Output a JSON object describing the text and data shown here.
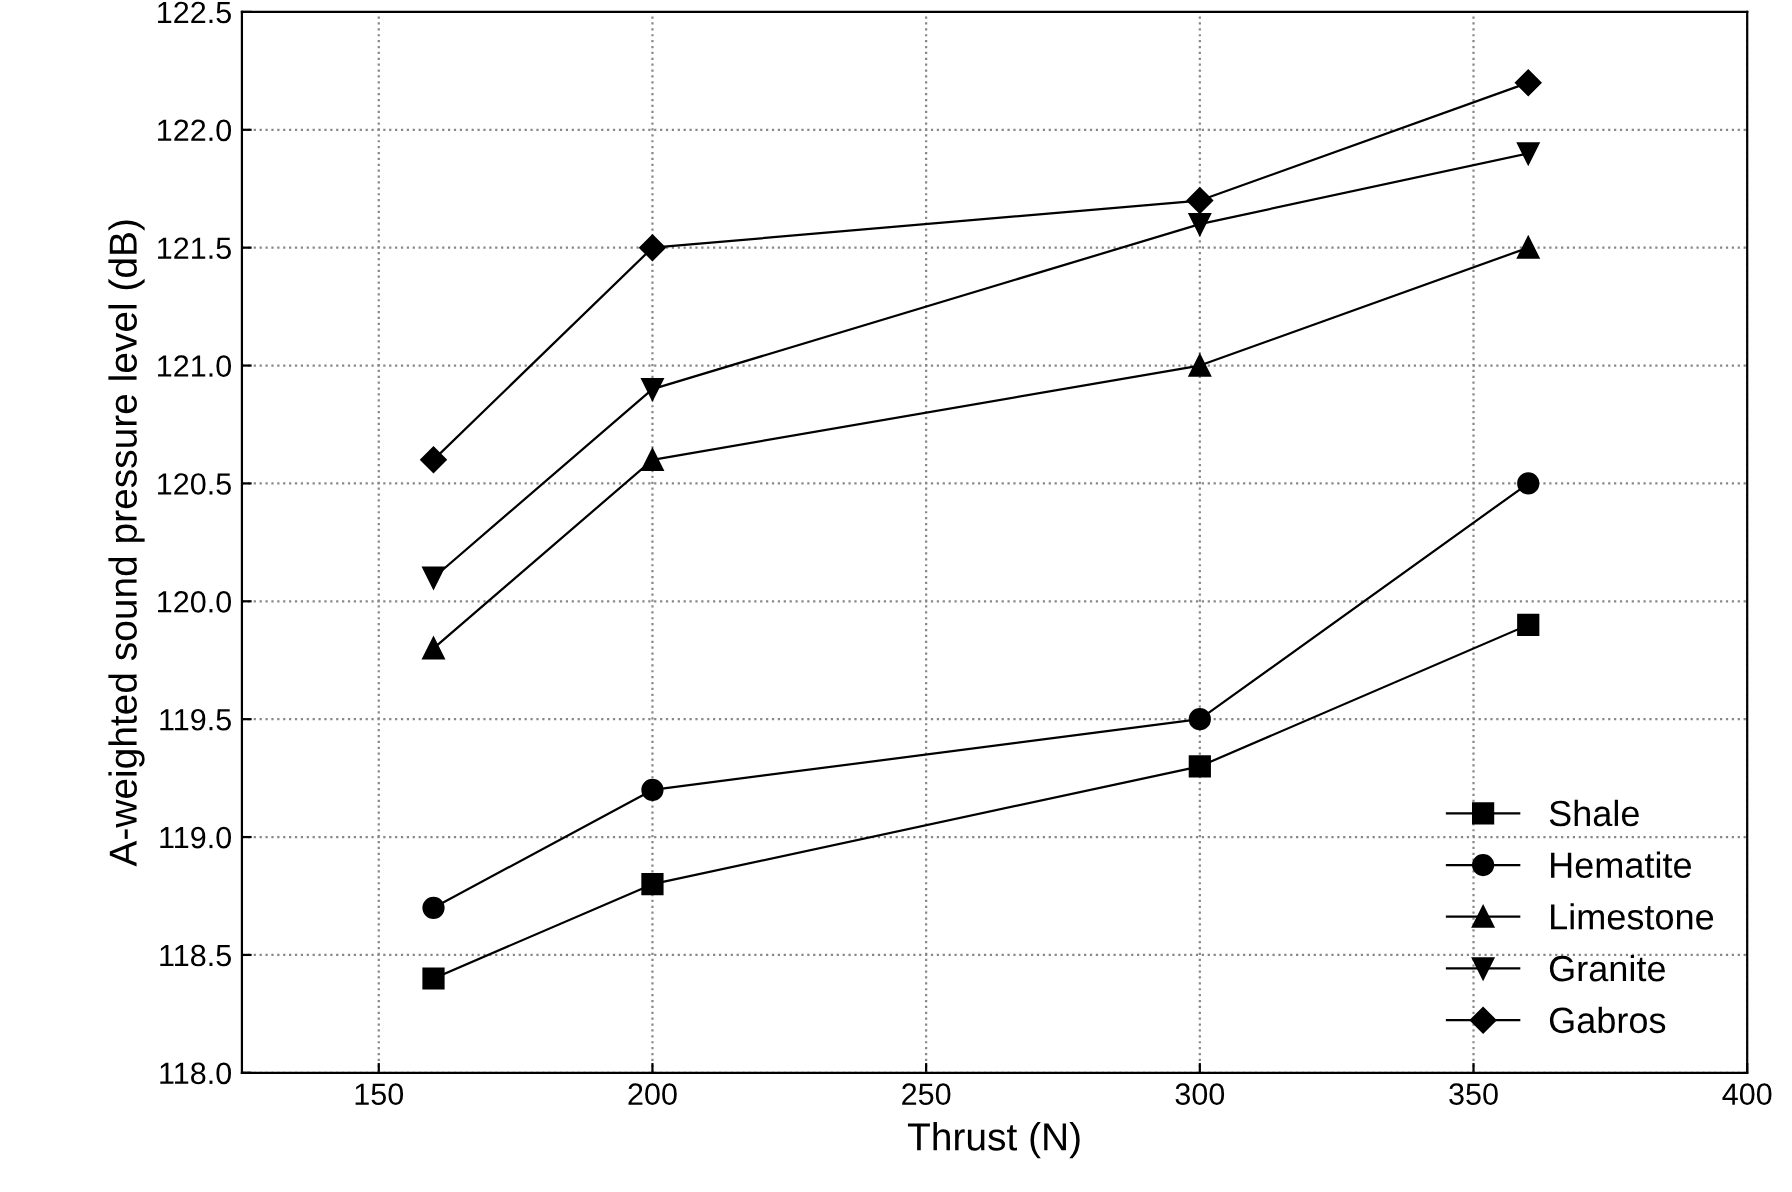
{
  "chart_data": {
    "type": "line",
    "xlabel": "Thrust (N)",
    "ylabel": "A-weighted sound pressure level (dB)",
    "x": [
      160,
      200,
      300,
      360
    ],
    "series": [
      {
        "name": "Shale",
        "color": "#000000",
        "marker": "square",
        "values": [
          118.4,
          118.8,
          119.3,
          119.9
        ]
      },
      {
        "name": "Hematite",
        "color": "#000000",
        "marker": "circle",
        "values": [
          118.7,
          119.2,
          119.5,
          120.5
        ]
      },
      {
        "name": "Limestone",
        "color": "#000000",
        "marker": "triangle",
        "values": [
          119.8,
          120.6,
          121.0,
          121.5
        ]
      },
      {
        "name": "Granite",
        "color": "#000000",
        "marker": "triangle_down",
        "values": [
          120.1,
          120.9,
          121.6,
          121.9
        ]
      },
      {
        "name": "Gabros",
        "color": "#000000",
        "marker": "diamond",
        "values": [
          120.6,
          121.5,
          121.7,
          122.2
        ]
      }
    ],
    "xlim": [
      125,
      400
    ],
    "xticks": [
      150,
      200,
      250,
      300,
      350,
      400
    ],
    "ylim": [
      118.0,
      122.5
    ],
    "yticks": [
      {
        "value": 118.0,
        "label": "118.0"
      },
      {
        "value": 118.5,
        "label": "118.5"
      },
      {
        "value": 119.0,
        "label": "119.0"
      },
      {
        "value": 119.5,
        "label": "119.5"
      },
      {
        "value": 120.0,
        "label": "120.0"
      },
      {
        "value": 120.5,
        "label": "120.5"
      },
      {
        "value": 121.0,
        "label": "121.0"
      },
      {
        "value": 121.5,
        "label": "121.5"
      },
      {
        "value": 122.0,
        "label": "122.0"
      },
      {
        "value": 122.5,
        "label": "122.5"
      }
    ],
    "grid": true,
    "legend": "bottom right",
    "line_style": "solid"
  }
}
